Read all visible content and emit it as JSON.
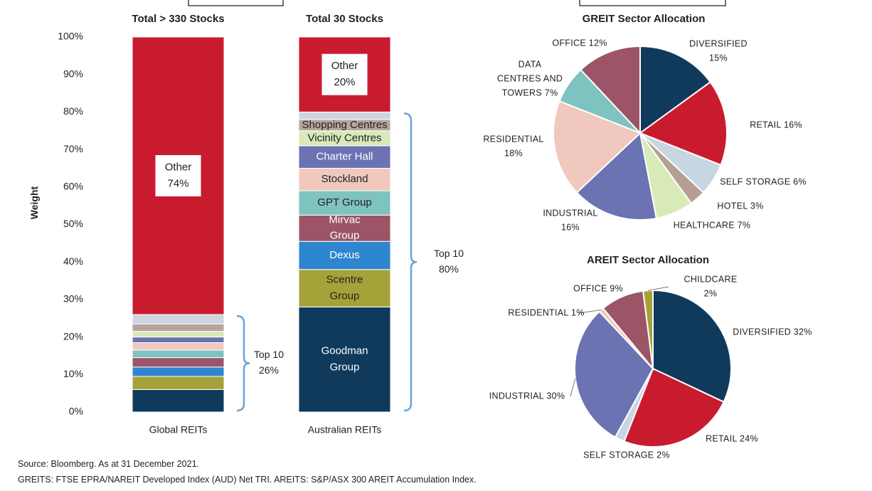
{
  "chart_data": [
    {
      "type": "stacked-bar",
      "ylabel": "Weight",
      "ylim": [
        0,
        100
      ],
      "yticks": [
        "0%",
        "10%",
        "20%",
        "30%",
        "40%",
        "50%",
        "60%",
        "70%",
        "80%",
        "90%",
        "100%"
      ],
      "bars": [
        {
          "header": "Total > 330 Stocks",
          "xlabel": "Global REITs",
          "segments": [
            {
              "value": 6,
              "color": "#0f3a5c",
              "label": ""
            },
            {
              "value": 3.5,
              "color": "#a6a23a",
              "label": ""
            },
            {
              "value": 2.5,
              "color": "#2e86d0",
              "label": ""
            },
            {
              "value": 2.5,
              "color": "#9b5566",
              "label": ""
            },
            {
              "value": 2,
              "color": "#7fc3c1",
              "label": ""
            },
            {
              "value": 2,
              "color": "#f0c8bd",
              "label": ""
            },
            {
              "value": 1.5,
              "color": "#6c73b3",
              "label": ""
            },
            {
              "value": 1.5,
              "color": "#d7eab8",
              "label": ""
            },
            {
              "value": 2,
              "color": "#b7a59b",
              "label": ""
            },
            {
              "value": 2.5,
              "color": "#cdd6e0",
              "label": ""
            },
            {
              "value": 74,
              "color": "#c81c2e",
              "label": "Other\n74%"
            }
          ],
          "bracket": {
            "from": 0,
            "to": 26,
            "label": "Top 10\n26%"
          }
        },
        {
          "header": "Total 30 Stocks",
          "xlabel": "Australian REITs",
          "segments": [
            {
              "value": 28,
              "color": "#0f3a5c",
              "label": "Goodman\nGroup"
            },
            {
              "value": 10,
              "color": "#a6a23a",
              "label": "Scentre\nGroup"
            },
            {
              "value": 7.5,
              "color": "#2e86d0",
              "label": "Dexus"
            },
            {
              "value": 7,
              "color": "#9b5566",
              "label": "Mirvac\nGroup"
            },
            {
              "value": 6.5,
              "color": "#7fc3c1",
              "label": "GPT Group"
            },
            {
              "value": 6,
              "color": "#f0c8bd",
              "label": "Stockland"
            },
            {
              "value": 6,
              "color": "#6c73b3",
              "label": "Charter Hall"
            },
            {
              "value": 4,
              "color": "#d7eab8",
              "label": "Vicinity Centres"
            },
            {
              "value": 3,
              "color": "#b7a59b",
              "label": "Shopping Centres"
            },
            {
              "value": 2,
              "color": "#cdd6e0",
              "label": ""
            },
            {
              "value": 20,
              "color": "#c81c2e",
              "label": "Other\n20%"
            }
          ],
          "bracket": {
            "from": 0,
            "to": 80,
            "label": "Top 10\n80%"
          }
        }
      ]
    },
    {
      "type": "pie",
      "title": "GREIT Sector Allocation",
      "slices": [
        {
          "label": "DIVERSIFIED\n15%",
          "value": 15,
          "color": "#0f3a5c"
        },
        {
          "label": "RETAIL  16%",
          "value": 16,
          "color": "#c81c2e"
        },
        {
          "label": "SELF STORAGE  6%",
          "value": 6,
          "color": "#c6d6e2"
        },
        {
          "label": "HOTEL  3%",
          "value": 3,
          "color": "#b59f93"
        },
        {
          "label": "HEALTHCARE  7%",
          "value": 7,
          "color": "#d7eab8"
        },
        {
          "label": "INDUSTRIAL\n16%",
          "value": 16,
          "color": "#6c73b3"
        },
        {
          "label": "RESIDENTIAL\n18%",
          "value": 18,
          "color": "#f0c8bd"
        },
        {
          "label": "DATA\nCENTRES AND\nTOWERS  7%",
          "value": 7,
          "color": "#7fc3c1"
        },
        {
          "label": "OFFICE  12%",
          "value": 12,
          "color": "#9b5566"
        }
      ]
    },
    {
      "type": "pie",
      "title": "AREIT Sector Allocation",
      "slices": [
        {
          "label": "DIVERSIFIED  32%",
          "value": 32,
          "color": "#0f3a5c"
        },
        {
          "label": "RETAIL  24%",
          "value": 24,
          "color": "#c81c2e"
        },
        {
          "label": "SELF STORAGE  2%",
          "value": 2,
          "color": "#c6d6e2"
        },
        {
          "label": "INDUSTRIAL  30%",
          "value": 30,
          "color": "#6c73b3"
        },
        {
          "label": "RESIDENTIAL  1%",
          "value": 1,
          "color": "#f0c8bd"
        },
        {
          "label": "OFFICE  9%",
          "value": 9,
          "color": "#9b5566"
        },
        {
          "label": "CHILDCARE\n2%",
          "value": 2,
          "color": "#a6a23a"
        }
      ]
    }
  ],
  "footnotes": {
    "source": "Source: Bloomberg. As at 31 December 2021.",
    "indices": "GREITS: FTSE EPRA/NAREIT Developed Index (AUD) Net TRI. AREITS: S&P/ASX 300 AREIT Accumulation Index."
  }
}
